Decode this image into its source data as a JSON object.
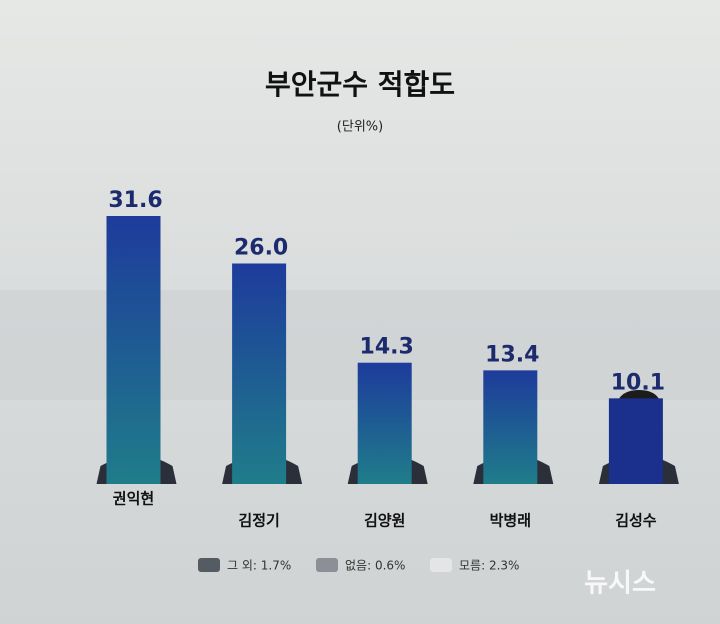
{
  "chart_data": {
    "type": "bar",
    "title": "부안군수 적합도",
    "subtitle": "(단위%)",
    "categories": [
      "권익현",
      "김정기",
      "김양원",
      "박병래",
      "김성수"
    ],
    "values": [
      31.6,
      26.0,
      14.3,
      13.4,
      10.1
    ],
    "value_labels": [
      "31.6",
      "26.0",
      "14.3",
      "13.4",
      "10.1"
    ],
    "notes": [
      "그 외: 1.7%",
      "없음: 0.6%",
      "모름: 2.3%"
    ],
    "source": "뉴시스"
  }
}
